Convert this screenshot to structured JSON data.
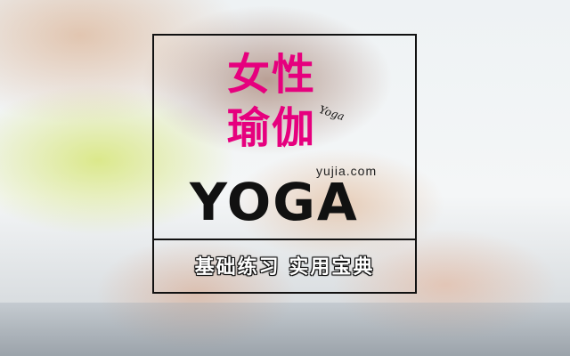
{
  "banner": {
    "title_line1": "女性",
    "title_line2": "瑜伽",
    "script_word": "Yoga",
    "url": "yujia.com",
    "headline": "YOGA",
    "subtitle": "基础练习 实用宝典",
    "accent_color": "#e6007e"
  }
}
